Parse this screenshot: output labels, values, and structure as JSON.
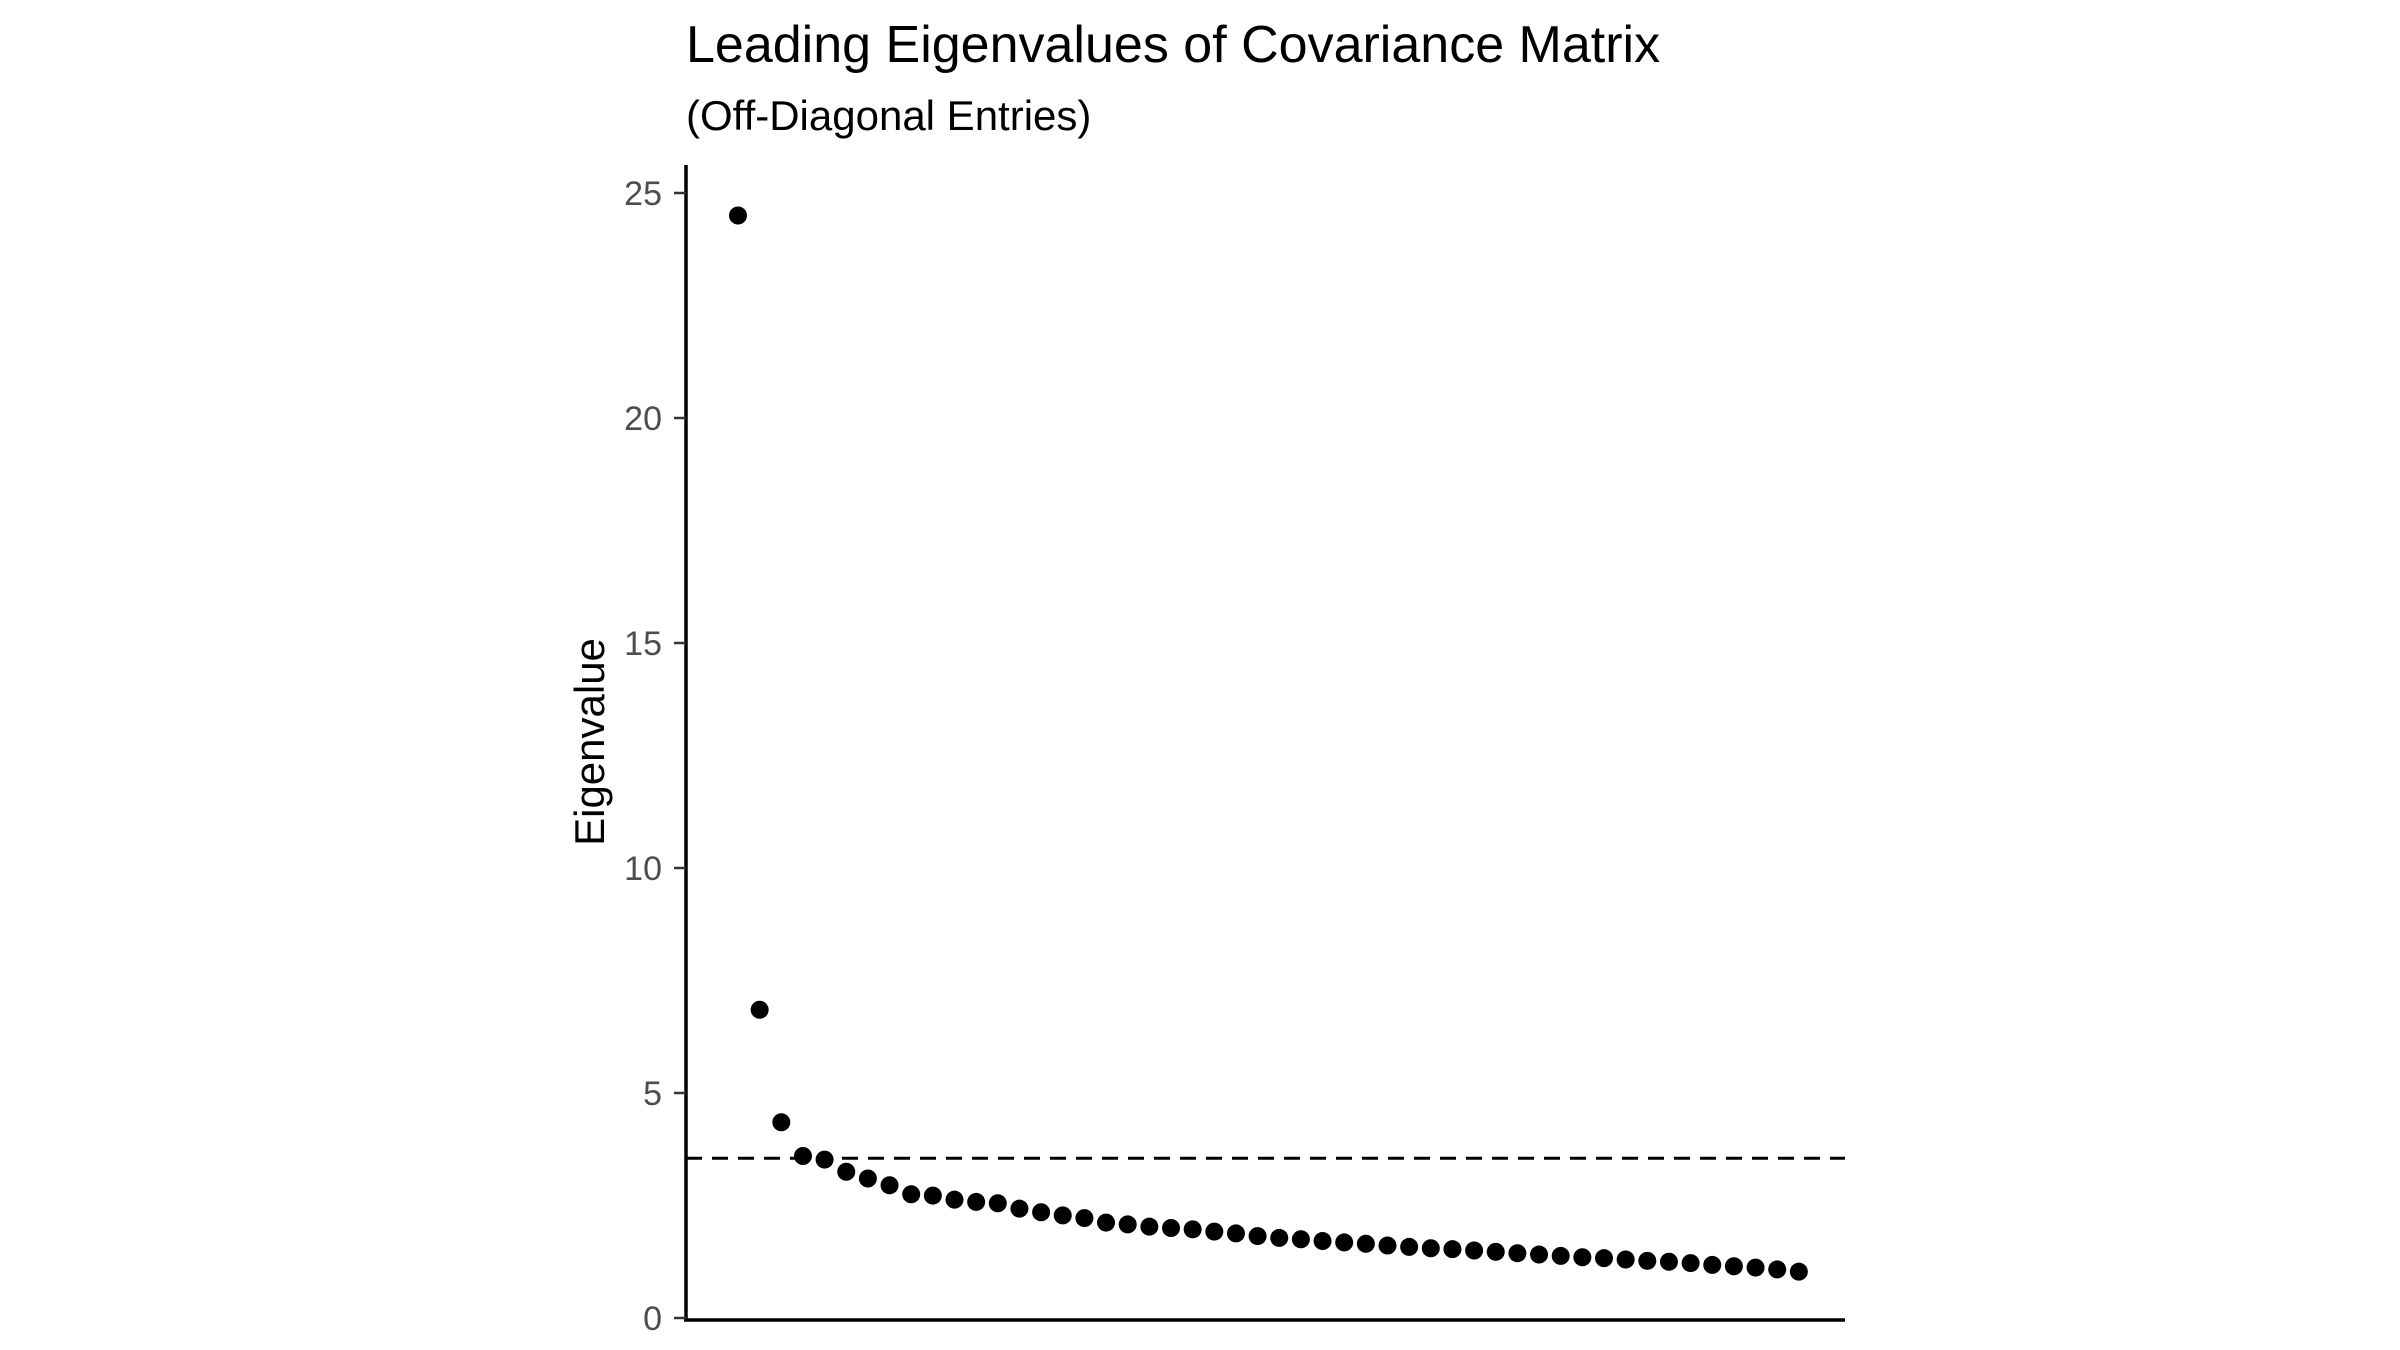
{
  "chart_data": {
    "type": "scatter",
    "title": "Leading Eigenvalues of Covariance Matrix",
    "subtitle": "(Off-Diagonal Entries)",
    "xlabel": "",
    "ylabel": "Eigenvalue",
    "ylim": [
      0,
      25.5
    ],
    "xlim": [
      0,
      54
    ],
    "yticks": [
      0,
      5,
      10,
      15,
      20,
      25
    ],
    "grid": false,
    "legend": "none",
    "point_color": "#000000",
    "reference_line": {
      "y": 3.55,
      "style": "dashed",
      "color": "#000000"
    },
    "series": [
      {
        "x": [
          1,
          2,
          3,
          4,
          5,
          6,
          7,
          8,
          9,
          10,
          11,
          12,
          13,
          14,
          15,
          16,
          17,
          18,
          19,
          20,
          21,
          22,
          23,
          24,
          25,
          26,
          27,
          28,
          29,
          30,
          31,
          32,
          33,
          34,
          35,
          36,
          37,
          38,
          39,
          40,
          41,
          42,
          43,
          44,
          45,
          46,
          47,
          48,
          49,
          50
        ],
        "values": [
          24.5,
          6.85,
          4.35,
          3.6,
          3.52,
          3.25,
          3.1,
          2.95,
          2.75,
          2.72,
          2.63,
          2.58,
          2.55,
          2.43,
          2.35,
          2.28,
          2.22,
          2.12,
          2.08,
          2.03,
          2.0,
          1.97,
          1.92,
          1.88,
          1.82,
          1.78,
          1.75,
          1.71,
          1.68,
          1.65,
          1.61,
          1.58,
          1.55,
          1.53,
          1.5,
          1.47,
          1.44,
          1.41,
          1.38,
          1.35,
          1.33,
          1.3,
          1.27,
          1.25,
          1.22,
          1.18,
          1.15,
          1.12,
          1.08,
          1.03
        ]
      }
    ]
  }
}
